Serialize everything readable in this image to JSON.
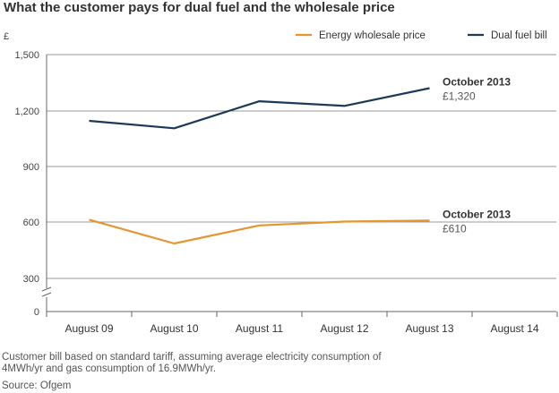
{
  "title": "What the customer pays for dual fuel and the wholesale price",
  "footnote": "Customer bill based on standard tariff, assuming average electricity consumption of 4MWh/yr and gas consumption of 16.9MWh/yr.",
  "source": "Source: Ofgem",
  "colors": {
    "wholesale": "#E8952F",
    "bill": "#1C3A57",
    "grid": "#999999",
    "axis": "#666666"
  },
  "chart_data": {
    "type": "line",
    "title": "What the customer pays for dual fuel and the wholesale price",
    "ylabel": "£",
    "xlabel": "",
    "categories": [
      "August 09",
      "August 10",
      "August 11",
      "August 12",
      "August 13",
      "August 14"
    ],
    "y_ticks": [
      "1,500",
      "1,200",
      "900",
      "600",
      "300",
      "0"
    ],
    "y_tick_values": [
      1500,
      1200,
      900,
      600,
      300,
      0
    ],
    "ylim": [
      0,
      1500
    ],
    "axis_break": "between 0 and 300",
    "grid": true,
    "legend_position": "top-right",
    "series": [
      {
        "name": "Energy wholesale price",
        "color": "#E8952F",
        "x": [
          0,
          1,
          2,
          3,
          4
        ],
        "values": [
          615,
          487,
          584,
          605,
          610
        ],
        "annotation": {
          "label": "October 2013",
          "value_text": "£610"
        }
      },
      {
        "name": "Dual fuel bill",
        "color": "#1C3A57",
        "x": [
          0,
          1,
          2,
          3,
          4
        ],
        "values": [
          1145,
          1105,
          1250,
          1225,
          1320
        ],
        "annotation": {
          "label": "October 2013",
          "value_text": "£1,320"
        }
      }
    ]
  }
}
